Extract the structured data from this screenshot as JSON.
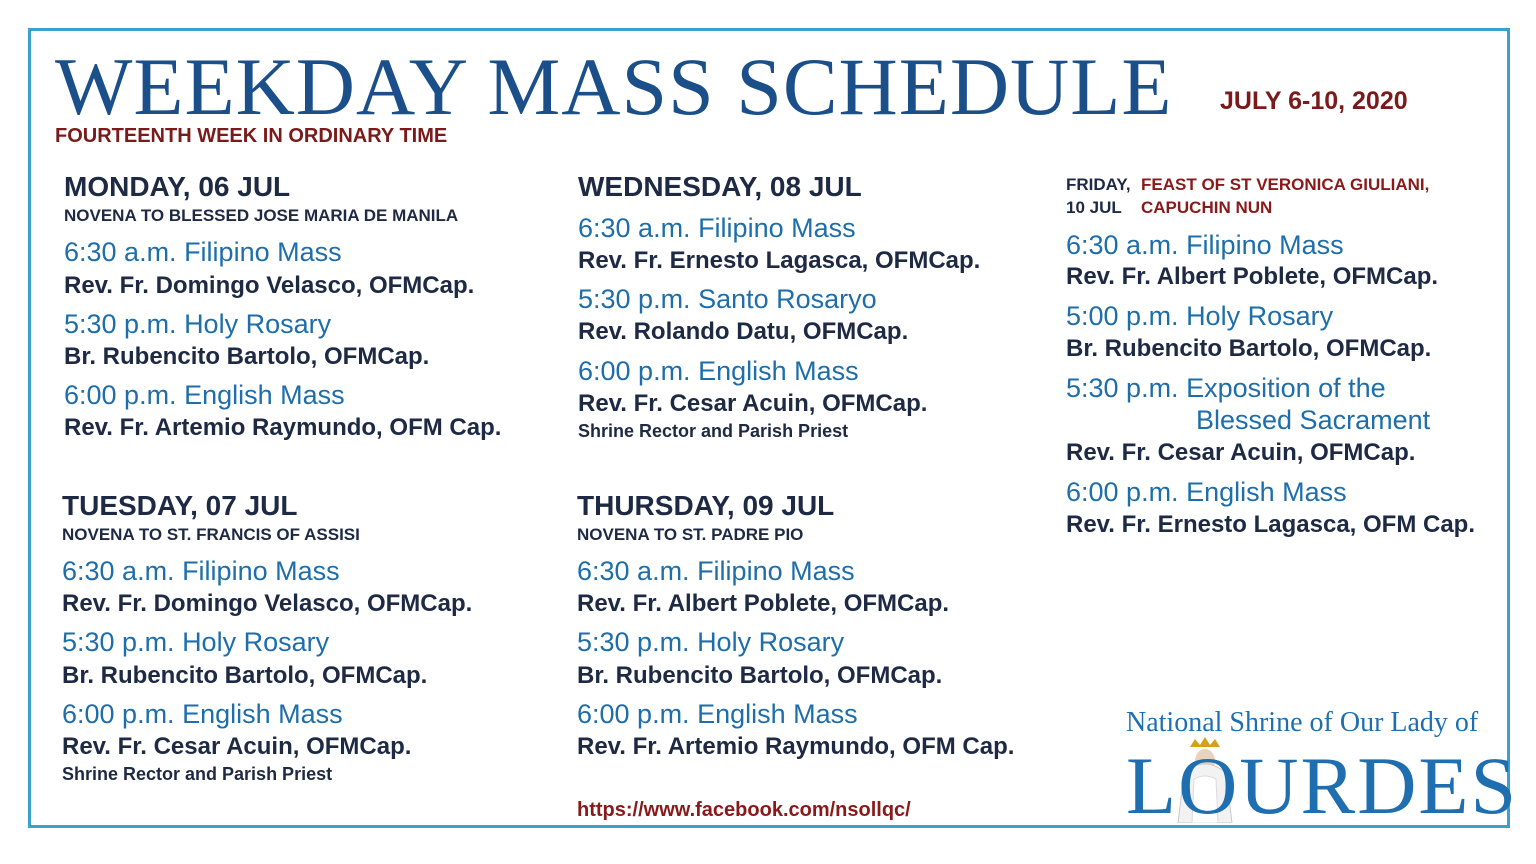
{
  "header": {
    "title": "WEEKDAY MASS SCHEDULE",
    "dates": "JULY 6-10, 2020",
    "subtitle": "FOURTEENTH WEEK IN ORDINARY TIME"
  },
  "days": [
    {
      "day": "MONDAY, 06 JUL",
      "novena": "NOVENA TO BLESSED JOSE MARIA DE MANILA",
      "events": [
        {
          "time": "6:30 a.m. Filipino Mass",
          "celebrant": "Rev. Fr. Domingo Velasco, OFMCap."
        },
        {
          "time": "5:30 p.m. Holy Rosary",
          "celebrant": "Br. Rubencito Bartolo, OFMCap."
        },
        {
          "time": "6:00 p.m. English Mass",
          "celebrant": "Rev. Fr. Artemio Raymundo, OFM Cap."
        }
      ]
    },
    {
      "day": "TUESDAY, 07 JUL",
      "novena": "NOVENA TO ST. FRANCIS OF ASSISI",
      "events": [
        {
          "time": "6:30 a.m. Filipino Mass",
          "celebrant": "Rev. Fr. Domingo Velasco, OFMCap."
        },
        {
          "time": "5:30 p.m. Holy Rosary",
          "celebrant": "Br. Rubencito Bartolo, OFMCap."
        },
        {
          "time": "6:00 p.m. English Mass",
          "celebrant": "Rev. Fr. Cesar Acuin, OFMCap.",
          "note": "Shrine Rector and Parish Priest"
        }
      ]
    },
    {
      "day": "WEDNESDAY, 08 JUL",
      "events": [
        {
          "time": "6:30 a.m. Filipino Mass",
          "celebrant": "Rev. Fr. Ernesto Lagasca, OFMCap."
        },
        {
          "time": "5:30 p.m. Santo Rosaryo",
          "celebrant": "Rev. Rolando Datu, OFMCap."
        },
        {
          "time": "6:00 p.m. English Mass",
          "celebrant": "Rev. Fr. Cesar Acuin, OFMCap.",
          "note": "Shrine Rector and Parish Priest"
        }
      ]
    },
    {
      "day": "THURSDAY, 09 JUL",
      "novena": "NOVENA TO ST. PADRE PIO",
      "events": [
        {
          "time": "6:30 a.m. Filipino Mass",
          "celebrant": "Rev. Fr. Albert Poblete, OFMCap."
        },
        {
          "time": "5:30 p.m. Holy Rosary",
          "celebrant": "Br. Rubencito Bartolo, OFMCap."
        },
        {
          "time": "6:00 p.m. English Mass",
          "celebrant": "Rev. Fr. Artemio Raymundo, OFM Cap."
        }
      ]
    },
    {
      "day": "FRIDAY,",
      "date": "10 JUL",
      "feast": [
        "FEAST OF ST VERONICA GIULIANI,",
        "CAPUCHIN NUN"
      ],
      "events": [
        {
          "time": "6:30 a.m. Filipino Mass",
          "celebrant": "Rev. Fr. Albert Poblete, OFMCap."
        },
        {
          "time": "5:00 p.m. Holy Rosary",
          "celebrant": "Br. Rubencito Bartolo, OFMCap."
        },
        {
          "time": "5:30 p.m. Exposition of the",
          "time_cont": "Blessed Sacrament",
          "celebrant": "Rev. Fr. Cesar Acuin, OFMCap."
        },
        {
          "time": "6:00 p.m. English Mass",
          "celebrant": "Rev. Fr. Ernesto Lagasca, OFM Cap."
        }
      ]
    }
  ],
  "footer": {
    "url": "https://www.facebook.com/nsollqc/"
  },
  "logo": {
    "line1": "National Shrine of Our Lady of",
    "line2": "LOURDES"
  }
}
